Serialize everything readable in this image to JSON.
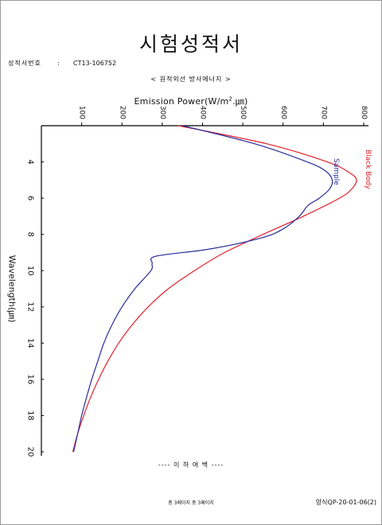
{
  "document": {
    "title": "시험성적서",
    "cert_label": "성적서번호",
    "cert_colon": ":",
    "cert_number": "CT13-106752",
    "subtitle": "< 원적외선 방사에너지 >",
    "end_mark": "---- 이 하 여 백 ----",
    "page_indicator": "총 3페이지 중 3페이지",
    "form_number": "양식QP-20-01-06(2)"
  },
  "chart_data": {
    "type": "line",
    "title": "",
    "ylabel": "Emission Power(W/m2.㎛)",
    "ylabel_main": "Emission Power(W/m",
    "ylabel_sup": "2",
    "ylabel_tail": ".㎛)",
    "xlabel": "Wavelength(㎛)",
    "orientation": "rotated",
    "power_range": [
      0,
      800
    ],
    "power_ticks": [
      "100",
      "200",
      "300",
      "400",
      "500",
      "600",
      "700",
      "800"
    ],
    "wavelength_range": [
      2,
      20
    ],
    "wavelength_ticks": [
      "4",
      "6",
      "8",
      "10",
      "12",
      "14",
      "16",
      "18",
      "20"
    ],
    "grid": false,
    "series": [
      {
        "name": "Black Body",
        "color": "#e0202c",
        "points": [
          [
            2,
            340
          ],
          [
            3,
            560
          ],
          [
            4,
            710
          ],
          [
            4.6,
            765
          ],
          [
            5,
            782
          ],
          [
            5.5,
            770
          ],
          [
            6,
            740
          ],
          [
            7,
            650
          ],
          [
            8,
            550
          ],
          [
            9,
            455
          ],
          [
            10,
            380
          ],
          [
            11,
            315
          ],
          [
            12,
            265
          ],
          [
            13,
            225
          ],
          [
            14,
            192
          ],
          [
            15,
            165
          ],
          [
            16,
            142
          ],
          [
            17,
            122
          ],
          [
            18,
            105
          ],
          [
            19,
            90
          ],
          [
            20,
            78
          ]
        ]
      },
      {
        "name": "Sample",
        "color": "#2a2a9a",
        "points": [
          [
            2,
            350
          ],
          [
            3,
            530
          ],
          [
            4,
            660
          ],
          [
            4.5,
            705
          ],
          [
            5,
            722
          ],
          [
            5.5,
            715
          ],
          [
            6,
            690
          ],
          [
            6.4,
            662
          ],
          [
            7,
            640
          ],
          [
            7.7,
            600
          ],
          [
            8.2,
            545
          ],
          [
            8.8,
            420
          ],
          [
            9.2,
            285
          ],
          [
            9.6,
            275
          ],
          [
            10,
            272
          ],
          [
            11,
            232
          ],
          [
            12,
            200
          ],
          [
            13,
            175
          ],
          [
            14,
            155
          ],
          [
            15,
            140
          ],
          [
            16,
            125
          ],
          [
            17,
            112
          ],
          [
            18,
            100
          ],
          [
            19,
            90
          ],
          [
            20,
            80
          ]
        ]
      }
    ]
  }
}
